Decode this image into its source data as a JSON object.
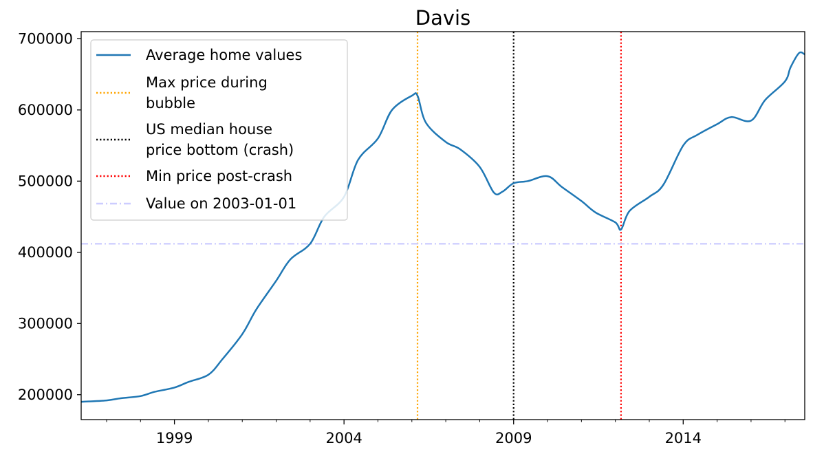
{
  "chart_data": {
    "type": "line",
    "title": "Davis",
    "xlabel": "",
    "ylabel": "",
    "x_ticks": [
      "1999",
      "2004",
      "2009",
      "2014"
    ],
    "y_ticks": [
      "200000",
      "300000",
      "400000",
      "500000",
      "600000",
      "700000"
    ],
    "xlim": [
      "1996-04",
      "2017-08"
    ],
    "ylim": [
      165000,
      710000
    ],
    "grid": false,
    "legend_placement": "upper left",
    "series": [
      {
        "name": "Average home values",
        "color": "#1f77b4",
        "x": [
          "1996-04",
          "1997-01",
          "1997-06",
          "1998-01",
          "1998-06",
          "1999-01",
          "1999-06",
          "2000-01",
          "2000-06",
          "2001-01",
          "2001-06",
          "2002-01",
          "2002-06",
          "2003-01",
          "2003-06",
          "2004-01",
          "2004-06",
          "2005-01",
          "2005-06",
          "2006-01",
          "2006-03",
          "2006-06",
          "2007-01",
          "2007-06",
          "2008-01",
          "2008-06",
          "2008-09",
          "2009-01",
          "2009-06",
          "2010-01",
          "2010-06",
          "2011-01",
          "2011-06",
          "2012-01",
          "2012-03",
          "2012-06",
          "2013-01",
          "2013-06",
          "2014-01",
          "2014-06",
          "2015-01",
          "2015-06",
          "2016-01",
          "2016-06",
          "2017-01",
          "2017-03",
          "2017-06",
          "2017-08"
        ],
        "values": [
          190000,
          192000,
          195000,
          198000,
          204000,
          210000,
          218000,
          228000,
          250000,
          285000,
          320000,
          360000,
          390000,
          412000,
          450000,
          478000,
          530000,
          560000,
          600000,
          620000,
          620000,
          582000,
          555000,
          545000,
          520000,
          484000,
          485000,
          497000,
          500000,
          507000,
          492000,
          472000,
          456000,
          442000,
          432000,
          458000,
          478000,
          495000,
          550000,
          565000,
          580000,
          590000,
          585000,
          614000,
          640000,
          660000,
          680000,
          678000
        ]
      }
    ],
    "reference_lines": [
      {
        "name": "Max price during bubble",
        "orientation": "vertical",
        "x": "2006-03",
        "color": "#ffa500",
        "style": "dotted"
      },
      {
        "name": "US median house price bottom (crash)",
        "orientation": "vertical",
        "x": "2009-01",
        "color": "#000000",
        "style": "dotted"
      },
      {
        "name": "Min price post-crash",
        "orientation": "vertical",
        "x": "2012-03",
        "color": "#ff0000",
        "style": "dotted"
      },
      {
        "name": "Value on 2003-01-01",
        "orientation": "horizontal",
        "y": 412000,
        "color": "#ccccff",
        "style": "dashdot"
      }
    ],
    "legend": [
      {
        "label_lines": [
          "Average home values"
        ],
        "color": "#1f77b4",
        "style": "solid"
      },
      {
        "label_lines": [
          "Max price during",
          "bubble"
        ],
        "color": "#ffa500",
        "style": "dotted"
      },
      {
        "label_lines": [
          "US median house",
          "price bottom (crash)"
        ],
        "color": "#000000",
        "style": "dotted"
      },
      {
        "label_lines": [
          "Min price post-crash"
        ],
        "color": "#ff0000",
        "style": "dotted"
      },
      {
        "label_lines": [
          "Value on 2003-01-01"
        ],
        "color": "#ccccff",
        "style": "dashdot"
      }
    ]
  }
}
